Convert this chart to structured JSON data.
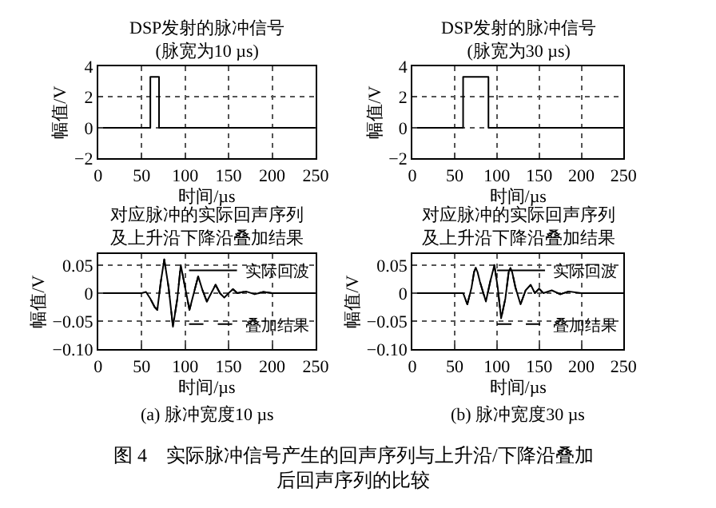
{
  "chart_data": [
    {
      "type": "line",
      "title": "DSP发射的脉冲信号",
      "subtitle": "(脉宽为10 µs)",
      "xlabel": "时间/µs",
      "ylabel": "幅值/V",
      "xlim": [
        0,
        250
      ],
      "xticks": [
        0,
        50,
        100,
        150,
        200,
        250
      ],
      "ylim": [
        -2,
        4
      ],
      "yticks": [
        {
          "value": -2,
          "label": "−2"
        },
        0,
        2,
        4
      ],
      "grid": true,
      "legend": false,
      "marker": "none",
      "line_style": "solid",
      "series": [
        {
          "color": "#000000",
          "x": [
            0,
            60,
            60,
            70,
            70,
            250
          ],
          "values": [
            0,
            0,
            3.3,
            3.3,
            0,
            0
          ]
        }
      ]
    },
    {
      "type": "line",
      "title": "DSP发射的脉冲信号",
      "subtitle": "(脉宽为30 µs)",
      "xlabel": "时间/µs",
      "ylabel": "幅值/V",
      "xlim": [
        0,
        250
      ],
      "xticks": [
        0,
        50,
        100,
        150,
        200,
        250
      ],
      "ylim": [
        -2,
        4
      ],
      "yticks": [
        {
          "value": -2,
          "label": "−2"
        },
        0,
        2,
        4
      ],
      "grid": true,
      "legend": false,
      "marker": "none",
      "line_style": "solid",
      "series": [
        {
          "color": "#000000",
          "x": [
            0,
            60,
            60,
            90,
            90,
            250
          ],
          "values": [
            0,
            0,
            3.3,
            3.3,
            0,
            0
          ]
        }
      ]
    },
    {
      "type": "line",
      "title": "对应脉冲的实际回声序列及上升沿下降沿叠加结果",
      "xlabel": "时间/µs",
      "ylabel": "幅值/V",
      "xlim": [
        0,
        250
      ],
      "xticks": [
        0,
        50,
        100,
        150,
        200,
        250
      ],
      "ylim": [
        -0.1,
        0.07
      ],
      "yticks": [
        {
          "value": -0.1,
          "label": "−0.10"
        },
        {
          "value": -0.05,
          "label": "−0.05"
        },
        0,
        0.05
      ],
      "grid": true,
      "legend": "right",
      "marker": "none",
      "annotations": [
        "(a) 脉冲宽度10 µs"
      ],
      "series": [
        {
          "name": "实际回波",
          "color": "#000000",
          "line_style": "solid",
          "x": [
            0,
            50,
            55,
            60,
            65,
            68,
            72,
            76,
            81,
            86,
            91,
            95,
            100,
            105,
            110,
            115,
            120,
            125,
            130,
            135,
            140,
            145,
            150,
            155,
            160,
            170,
            180,
            190,
            200,
            250
          ],
          "values": [
            0,
            0,
            0.002,
            -0.01,
            -0.025,
            -0.03,
            0.02,
            0.06,
            0.01,
            -0.06,
            -0.01,
            0.05,
            0.01,
            -0.03,
            0,
            0.03,
            0.005,
            -0.015,
            0,
            0.015,
            0,
            -0.008,
            0,
            0.007,
            0,
            0.003,
            -0.002,
            0.002,
            0,
            0
          ]
        },
        {
          "name": "叠加结果",
          "color": "#000000",
          "line_style": "dashed",
          "x": [
            0,
            50,
            55,
            60,
            65,
            68,
            72,
            76,
            81,
            86,
            91,
            95,
            100,
            105,
            110,
            115,
            120,
            125,
            130,
            135,
            140,
            145,
            150,
            155,
            160,
            170,
            180,
            190,
            200,
            250
          ],
          "values": [
            0,
            0,
            0.002,
            -0.01,
            -0.025,
            -0.03,
            0.02,
            0.06,
            0.01,
            -0.06,
            -0.01,
            0.05,
            0.01,
            -0.03,
            0,
            0.03,
            0.005,
            -0.015,
            0,
            0.015,
            0,
            -0.008,
            0,
            0.007,
            0,
            0.003,
            -0.002,
            0.002,
            0,
            0
          ]
        }
      ]
    },
    {
      "type": "line",
      "title": "对应脉冲的实际回声序列及上升沿下降沿叠加结果",
      "xlabel": "时间/µs",
      "ylabel": "幅值/V",
      "xlim": [
        0,
        250
      ],
      "xticks": [
        0,
        50,
        100,
        150,
        200,
        250
      ],
      "ylim": [
        -0.1,
        0.07
      ],
      "yticks": [
        {
          "value": -0.1,
          "label": "−0.10"
        },
        {
          "value": -0.05,
          "label": "−0.05"
        },
        0,
        0.05
      ],
      "grid": true,
      "legend": "right",
      "marker": "none",
      "annotations": [
        "(b) 脉冲宽度30 µs",
        "图 4　实际脉冲信号产生的回声序列与上升沿/下降沿叠加后回声序列的比较"
      ],
      "series": [
        {
          "name": "实际回波",
          "color": "#000000",
          "line_style": "solid",
          "x": [
            0,
            55,
            60,
            65,
            70,
            73,
            75,
            77,
            80,
            87,
            92,
            97,
            101,
            105,
            110,
            114,
            116,
            118,
            122,
            128,
            134,
            140,
            145,
            150,
            155,
            165,
            175,
            185,
            200,
            250
          ],
          "values": [
            0,
            0,
            0,
            -0.02,
            0.01,
            0.038,
            0.045,
            0.038,
            0.02,
            -0.015,
            0.02,
            0.05,
            0.01,
            -0.045,
            -0.01,
            0.038,
            0.045,
            0.038,
            0.01,
            -0.02,
            0.005,
            0.015,
            0,
            0.008,
            0,
            0.005,
            -0.002,
            0.003,
            0,
            0
          ]
        },
        {
          "name": "叠加结果",
          "color": "#000000",
          "line_style": "dashed",
          "x": [
            0,
            55,
            60,
            65,
            70,
            73,
            75,
            77,
            80,
            87,
            92,
            97,
            101,
            105,
            110,
            114,
            116,
            118,
            122,
            128,
            134,
            140,
            145,
            150,
            155,
            165,
            175,
            185,
            200,
            250
          ],
          "values": [
            0,
            0,
            0,
            -0.02,
            0.01,
            0.038,
            0.045,
            0.038,
            0.02,
            -0.015,
            0.02,
            0.05,
            0.01,
            -0.045,
            -0.01,
            0.038,
            0.045,
            0.038,
            0.01,
            -0.02,
            0.005,
            0.015,
            0,
            0.008,
            0,
            0.005,
            -0.002,
            0.003,
            0,
            0
          ]
        }
      ]
    }
  ]
}
